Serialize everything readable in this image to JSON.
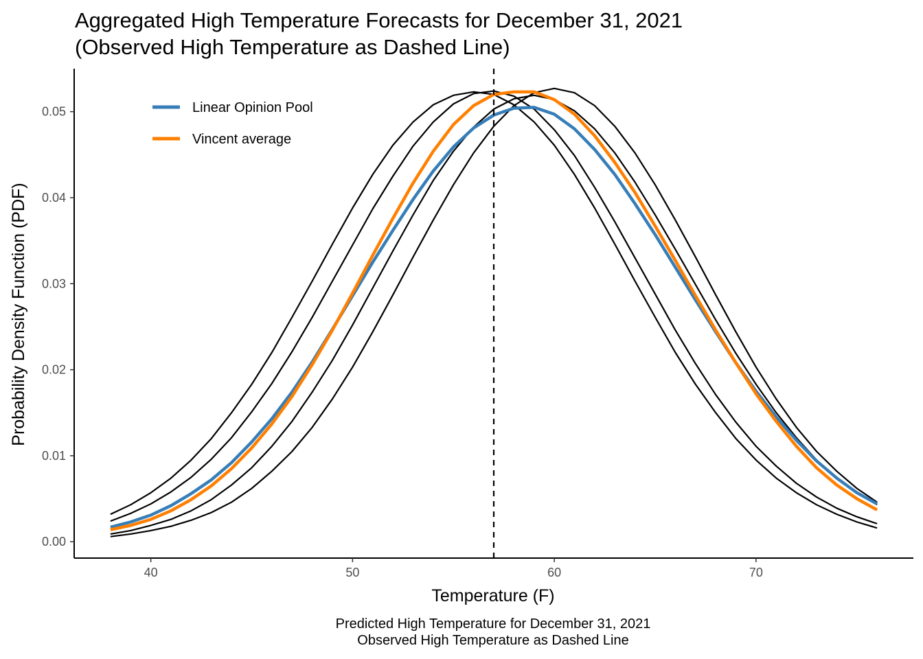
{
  "chart_data": {
    "type": "line",
    "title": "Aggregated High Temperature Forecasts for December 31, 2021",
    "subtitle": "(Observed High Temperature as Dashed Line)",
    "xlabel": "Temperature (F)",
    "ylabel": "Probability Density Function (PDF)",
    "caption": [
      "Predicted High Temperature for December 31, 2021",
      "Observed High Temperature as Dashed Line"
    ],
    "xlim": [
      36.2,
      77.8
    ],
    "ylim": [
      -0.0019,
      0.055
    ],
    "x_ticks": [
      40,
      50,
      60,
      70
    ],
    "y_ticks": [
      0.0,
      0.01,
      0.02,
      0.03,
      0.04,
      0.05
    ],
    "y_tick_labels": [
      "0.00",
      "0.01",
      "0.02",
      "0.03",
      "0.04",
      "0.05"
    ],
    "x_tick_labels": [
      "40",
      "50",
      "60",
      "70"
    ],
    "grid": false,
    "legend_position": "top-left",
    "x_range": [
      38,
      76
    ],
    "observed_temperature": 57,
    "series": [
      {
        "name": "Linear Opinion Pool",
        "color": "#377eb8",
        "values": [
          0.0017,
          0.0023,
          0.0031,
          0.0042,
          0.0056,
          0.0072,
          0.0092,
          0.0116,
          0.0143,
          0.0174,
          0.0209,
          0.0247,
          0.0286,
          0.0325,
          0.0362,
          0.0398,
          0.0431,
          0.0459,
          0.0481,
          0.0496,
          0.0504,
          0.0505,
          0.0497,
          0.048,
          0.0456,
          0.0427,
          0.0393,
          0.0357,
          0.0319,
          0.0281,
          0.0244,
          0.0208,
          0.0175,
          0.0145,
          0.0118,
          0.0094,
          0.0074,
          0.0057,
          0.0044
        ]
      },
      {
        "name": "Vincent average",
        "color": "#ff7f00",
        "values": [
          0.0014,
          0.0019,
          0.0026,
          0.0036,
          0.0049,
          0.0065,
          0.0085,
          0.0109,
          0.0137,
          0.0169,
          0.0206,
          0.0246,
          0.0289,
          0.0333,
          0.0376,
          0.0417,
          0.0454,
          0.0485,
          0.0507,
          0.052,
          0.0523,
          0.0523,
          0.0514,
          0.0497,
          0.0472,
          0.0441,
          0.0406,
          0.0367,
          0.0327,
          0.0286,
          0.0246,
          0.0208,
          0.0172,
          0.014,
          0.0111,
          0.0086,
          0.0066,
          0.005,
          0.0037
        ]
      },
      {
        "color": "#000000",
        "values": [
          0.0032,
          0.0043,
          0.0057,
          0.0074,
          0.0095,
          0.012,
          0.015,
          0.0183,
          0.022,
          0.0261,
          0.0303,
          0.0346,
          0.0388,
          0.0427,
          0.0461,
          0.0488,
          0.0508,
          0.0519,
          0.0523,
          0.052,
          0.0508,
          0.0488,
          0.0461,
          0.0427,
          0.0388,
          0.0346,
          0.0303,
          0.0261,
          0.022,
          0.0183,
          0.015,
          0.012,
          0.0095,
          0.0074,
          0.0057,
          0.0043,
          0.0032,
          0.0023,
          0.0016
        ]
      },
      {
        "color": "#000000",
        "values": [
          0.0024,
          0.0033,
          0.0044,
          0.0058,
          0.0075,
          0.0096,
          0.0121,
          0.0151,
          0.0184,
          0.0221,
          0.0261,
          0.0303,
          0.0345,
          0.0387,
          0.0425,
          0.046,
          0.0488,
          0.0509,
          0.0521,
          0.0524,
          0.0518,
          0.0503,
          0.0479,
          0.0449,
          0.0412,
          0.0372,
          0.033,
          0.0288,
          0.0246,
          0.0207,
          0.0171,
          0.0139,
          0.0111,
          0.0088,
          0.0068,
          0.0052,
          0.0039,
          0.0029,
          0.0021
        ]
      },
      {
        "color": "#000000",
        "values": [
          0.0009,
          0.0013,
          0.0019,
          0.0026,
          0.0036,
          0.0049,
          0.0066,
          0.0086,
          0.0111,
          0.014,
          0.0174,
          0.0211,
          0.0252,
          0.0295,
          0.0338,
          0.038,
          0.042,
          0.0454,
          0.0482,
          0.0503,
          0.0515,
          0.0519,
          0.0514,
          0.0501,
          0.048,
          0.0452,
          0.0418,
          0.038,
          0.034,
          0.0299,
          0.0258,
          0.0219,
          0.0183,
          0.015,
          0.0121,
          0.0095,
          0.0074,
          0.0057,
          0.0043
        ]
      },
      {
        "color": "#000000",
        "values": [
          0.0006,
          0.0009,
          0.0013,
          0.0018,
          0.0025,
          0.0034,
          0.0046,
          0.0062,
          0.0082,
          0.0105,
          0.0133,
          0.0166,
          0.0203,
          0.0244,
          0.0287,
          0.0331,
          0.0374,
          0.0415,
          0.0452,
          0.0483,
          0.0507,
          0.0522,
          0.0527,
          0.0522,
          0.0507,
          0.0483,
          0.0452,
          0.0415,
          0.0374,
          0.0331,
          0.0287,
          0.0244,
          0.0203,
          0.0166,
          0.0133,
          0.0105,
          0.0082,
          0.0062,
          0.0046
        ]
      }
    ]
  }
}
